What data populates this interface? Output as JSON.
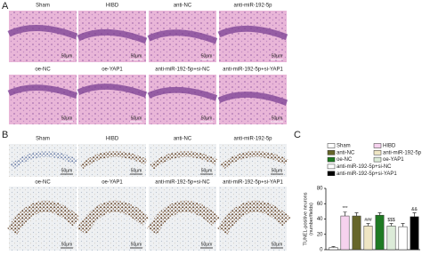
{
  "panels": {
    "A": {
      "label": "A",
      "images": [
        "Sham",
        "HIBD",
        "anti-NC",
        "anti-miR-192-5p",
        "oe-NC",
        "oe-YAP1",
        "anti-miR-192-5p+si-NC",
        "anti-miR-192-5p+si-YAP1"
      ]
    },
    "B": {
      "label": "B",
      "images": [
        "Sham",
        "HIBD",
        "anti-NC",
        "anti-miR-192-5p",
        "oe-NC",
        "oe-YAP1",
        "anti-miR-192-5p+si-NC",
        "anti-miR-192-5p+si-YAP1"
      ]
    }
  },
  "scale_bar": "50μm",
  "chart_data": {
    "type": "bar",
    "label": "C",
    "y_label": [
      "TUNEL-positive neurons",
      "(number/fields)"
    ],
    "categories": [
      "Sham",
      "HIBD",
      "anti-NC",
      "anti-miR-192-5p",
      "oe-NC",
      "oe-YAP1",
      "anti-miR-192-5p+si-NC",
      "anti-miR-192-5p+si-YAP1"
    ],
    "values": [
      3,
      44,
      44,
      31,
      45,
      31,
      30,
      43
    ],
    "errors": [
      1,
      5,
      4,
      3,
      3,
      3,
      4,
      5
    ],
    "annotations": [
      null,
      "***",
      null,
      "###",
      null,
      "$$$",
      null,
      "&&"
    ],
    "colors": [
      "#ffffff",
      "#f6d2ee",
      "#66662a",
      "#efe6c4",
      "#1f7a23",
      "#dcebd8",
      "#ffffff",
      "#000000"
    ],
    "ylim": [
      0,
      80
    ],
    "yticks": [
      0,
      20,
      40,
      60,
      80
    ]
  }
}
